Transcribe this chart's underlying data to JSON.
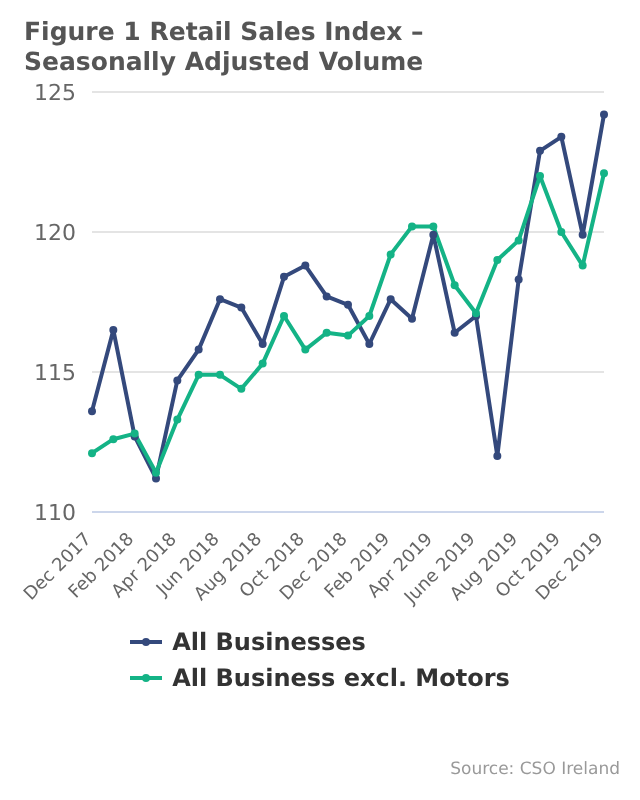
{
  "chart_data": {
    "type": "line",
    "title": "Figure 1 Retail Sales Index – Seasonally Adjusted Volume",
    "categories": [
      "Dec 2017",
      null,
      "Feb 2018",
      null,
      "Apr 2018",
      null,
      "Jun 2018",
      null,
      "Aug 2018",
      null,
      "Oct 2018",
      null,
      "Dec 2018",
      null,
      "Feb 2019",
      null,
      "Apr 2019",
      null,
      "June 2019",
      null,
      "Aug 2019",
      null,
      "Oct 2019",
      null,
      "Dec 2019"
    ],
    "series": [
      {
        "name": "All Businesses",
        "color": "#34497c",
        "values": [
          113.6,
          116.5,
          112.7,
          111.2,
          114.7,
          115.8,
          117.6,
          117.3,
          116.0,
          118.4,
          118.8,
          117.7,
          117.4,
          116.0,
          117.6,
          116.9,
          119.9,
          116.4,
          117.0,
          112.0,
          118.3,
          122.9,
          123.4,
          119.9,
          124.2
        ]
      },
      {
        "name": "All Business excl. Motors",
        "color": "#14b386",
        "values": [
          112.1,
          112.6,
          112.8,
          111.4,
          113.3,
          114.9,
          114.9,
          114.4,
          115.3,
          117.0,
          115.8,
          116.4,
          116.3,
          117.0,
          119.2,
          120.2,
          120.2,
          118.1,
          117.1,
          119.0,
          119.7,
          122.0,
          120.0,
          118.8,
          122.1
        ]
      }
    ],
    "ylim": [
      110,
      125
    ],
    "yticks": [
      110,
      115,
      120,
      125
    ],
    "grid": "y",
    "legend": "bottom",
    "marker": "circle",
    "line_style": "solid",
    "annotations": [
      "Source: CSO Ireland"
    ]
  }
}
